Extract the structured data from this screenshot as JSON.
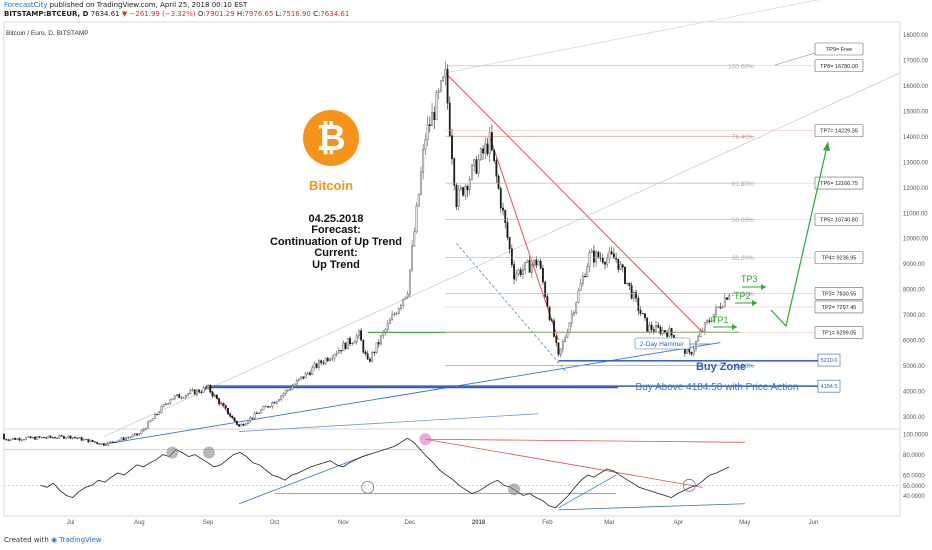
{
  "header": {
    "author": "ForecastCity",
    "published_text": "published on TradingView.com, April 25, 2018 00:10 EST",
    "symbol": "BITSTAMP:BTCEUR, D",
    "last": "7634.61",
    "change": "−261.99 (−3.32%)",
    "open_label": "O:",
    "open": "7901.29",
    "high_label": "H:",
    "high": "7976.65",
    "low_label": "L:",
    "low": "7516.90",
    "close_label": "C:",
    "close": "7634.61"
  },
  "footer": {
    "created_with": "Created with",
    "brand": "TradingView"
  },
  "colors": {
    "up": "#5a5a5a",
    "down": "#1c1c1c",
    "resistance": "#e05252",
    "support": "#3b73c8",
    "green": "#2ea82e",
    "orange": "#f7931a",
    "level": "#e8a0a0"
  },
  "chart_data": [
    {
      "type": "candlestick",
      "title": "Bitcoin / Euro, D, BITSTAMP",
      "x_ticks": [
        "Jul",
        "Aug",
        "Sep",
        "Oct",
        "Nov",
        "Dec",
        "2018",
        "Feb",
        "Mar",
        "Apr",
        "May",
        "Jun"
      ],
      "y_ticks": [
        3000,
        4000,
        5000,
        6000,
        7000,
        8000,
        9000,
        10000,
        11000,
        12000,
        13000,
        14000,
        15000,
        16000,
        17000,
        18000
      ],
      "ylim": [
        2500,
        18500
      ],
      "key_points": [
        {
          "x": "Jul 1",
          "y": 2200
        },
        {
          "x": "Jul 16",
          "y": 1900
        },
        {
          "x": "Aug 1",
          "y": 2300
        },
        {
          "x": "Aug 15",
          "y": 3700
        },
        {
          "x": "Sep 1",
          "y": 4100
        },
        {
          "x": "Sep 15",
          "y": 2600
        },
        {
          "x": "Oct 1",
          "y": 3600
        },
        {
          "x": "Oct 20",
          "y": 5000
        },
        {
          "x": "Nov 8",
          "y": 6200
        },
        {
          "x": "Nov 12",
          "y": 5100
        },
        {
          "x": "Nov 30",
          "y": 8000
        },
        {
          "x": "Dec 8",
          "y": 14000
        },
        {
          "x": "Dec 17",
          "y": 16300
        },
        {
          "x": "Dec 22",
          "y": 11500
        },
        {
          "x": "Jan 6",
          "y": 13800
        },
        {
          "x": "Jan 17",
          "y": 8600
        },
        {
          "x": "Jan 28",
          "y": 9100
        },
        {
          "x": "Feb 6",
          "y": 5300
        },
        {
          "x": "Feb 20",
          "y": 9300
        },
        {
          "x": "Mar 4",
          "y": 9200
        },
        {
          "x": "Mar 18",
          "y": 6500
        },
        {
          "x": "Mar 28",
          "y": 6300
        },
        {
          "x": "Apr 6",
          "y": 5400
        },
        {
          "x": "Apr 12",
          "y": 6400
        },
        {
          "x": "Apr 24",
          "y": 7900
        }
      ],
      "fib_levels": [
        {
          "label": "100.00%",
          "value": 16780
        },
        {
          "label": "76.40%",
          "value": 14000
        },
        {
          "label": "61.80%",
          "value": 12160
        },
        {
          "label": "50.00%",
          "value": 10740
        },
        {
          "label": "38.20%",
          "value": 9240
        },
        {
          "label": "23.60%",
          "value": 7830
        },
        {
          "label": "0.00%",
          "value": 5000
        }
      ],
      "targets": [
        {
          "label": "TP9= Free",
          "value": null
        },
        {
          "label": "TP8= 16780.00",
          "value": 16780
        },
        {
          "label": "TP7= 14229.35",
          "value": 14229.35
        },
        {
          "label": "TP6= 12166.75",
          "value": 12166.75
        },
        {
          "label": "TP5= 10740.80",
          "value": 10740.8
        },
        {
          "label": "TP4= 9236.95",
          "value": 9236.95
        },
        {
          "label": "TP3= 7830.55",
          "value": 7830.55
        },
        {
          "label": "TP2= 7297.45",
          "value": 7297.45
        },
        {
          "label": "TP1= 6299.05",
          "value": 6299.05
        }
      ],
      "buy_zone": {
        "upper_label": "5210.0",
        "upper": 5210,
        "lower_label": "4184.5",
        "lower": 4184.5,
        "label": "Buy Zone",
        "note": "Buy Above 4184.50 with Price Action"
      },
      "annotations": {
        "coin_symbol": "₿",
        "coin_name": "Bitcoin",
        "date": "04.25.2018",
        "forecast_label": "Forecast:",
        "forecast": "Continuation of Up Trend",
        "current_label": "Current:",
        "current": "Up Trend",
        "tp1": "TP1",
        "tp2": "TP2",
        "tp3": "TP3",
        "hammer": "2-Day Hammer"
      }
    },
    {
      "type": "line",
      "y_ticks": [
        "100.0000",
        "80.0000",
        "60.0000",
        "50.0000",
        "40.0000"
      ],
      "ylim": [
        20,
        105
      ],
      "values": [
        50,
        48,
        52,
        45,
        40,
        38,
        44,
        48,
        50,
        55,
        53,
        58,
        62,
        60,
        65,
        70,
        68,
        72,
        75,
        80,
        78,
        85,
        82,
        78,
        80,
        76,
        72,
        68,
        70,
        75,
        80,
        82,
        78,
        72,
        70,
        65,
        60,
        58,
        55,
        60,
        62,
        65,
        68,
        70,
        72,
        74,
        70,
        68,
        72,
        75,
        78,
        80,
        82,
        84,
        86,
        88,
        92,
        96,
        92,
        85,
        78,
        72,
        65,
        60,
        56,
        50,
        46,
        42,
        44,
        48,
        52,
        55,
        50,
        48,
        44,
        40,
        42,
        38,
        35,
        30,
        28,
        34,
        40,
        48,
        55,
        60,
        58,
        62,
        66,
        64,
        60,
        56,
        52,
        48,
        46,
        44,
        42,
        40,
        38,
        42,
        45,
        48,
        50,
        55,
        60,
        62,
        65,
        68
      ]
    }
  ]
}
